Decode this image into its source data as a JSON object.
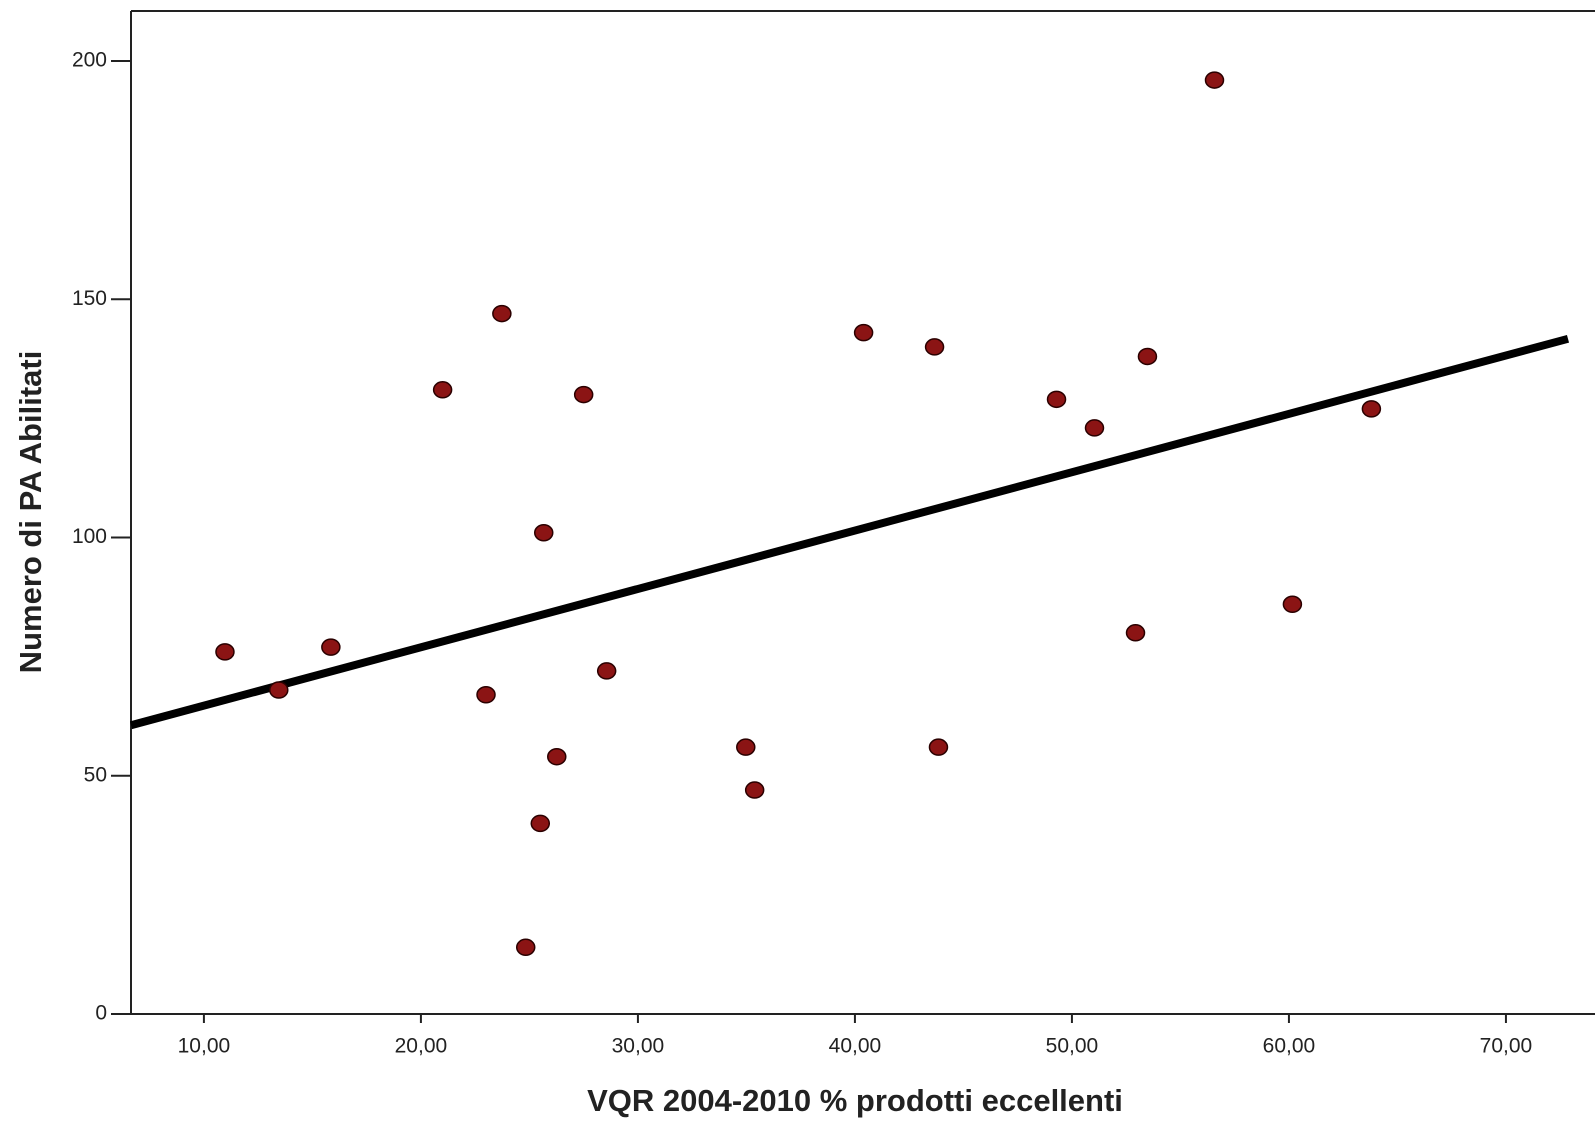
{
  "chart_data": {
    "type": "scatter",
    "x_label": "VQR  2004-2010 % prodotti eccellenti",
    "y_label": "Numero di PA Abilitati",
    "x": [
      10.97,
      13.45,
      15.85,
      21.0,
      23.0,
      23.73,
      24.83,
      25.5,
      25.66,
      26.26,
      27.5,
      28.56,
      34.97,
      35.38,
      40.4,
      43.67,
      43.85,
      49.29,
      51.04,
      52.93,
      53.48,
      56.57,
      60.16,
      63.8
    ],
    "values": [
      76,
      68,
      77,
      131,
      67,
      147,
      14,
      40,
      101,
      54,
      130,
      72,
      56,
      47,
      143,
      140,
      56,
      129,
      123,
      80,
      138,
      196,
      86,
      127
    ],
    "color": "#8b1414",
    "fit_line": {
      "x": [
        6.64,
        72.86
      ],
      "y": [
        60.6,
        141.7
      ],
      "color": "#000000"
    },
    "xlim": [
      6.64,
      72.86
    ],
    "ylim": [
      0,
      210.5
    ],
    "xticks": [
      {
        "value": 10,
        "label": "10,00"
      },
      {
        "value": 20,
        "label": "20,00"
      },
      {
        "value": 30,
        "label": "30,00"
      },
      {
        "value": 40,
        "label": "40,00"
      },
      {
        "value": 50,
        "label": "50,00"
      },
      {
        "value": 60,
        "label": "60,00"
      },
      {
        "value": 70,
        "label": "70,00"
      }
    ],
    "yticks": [
      0,
      50,
      100,
      150,
      200
    ]
  }
}
